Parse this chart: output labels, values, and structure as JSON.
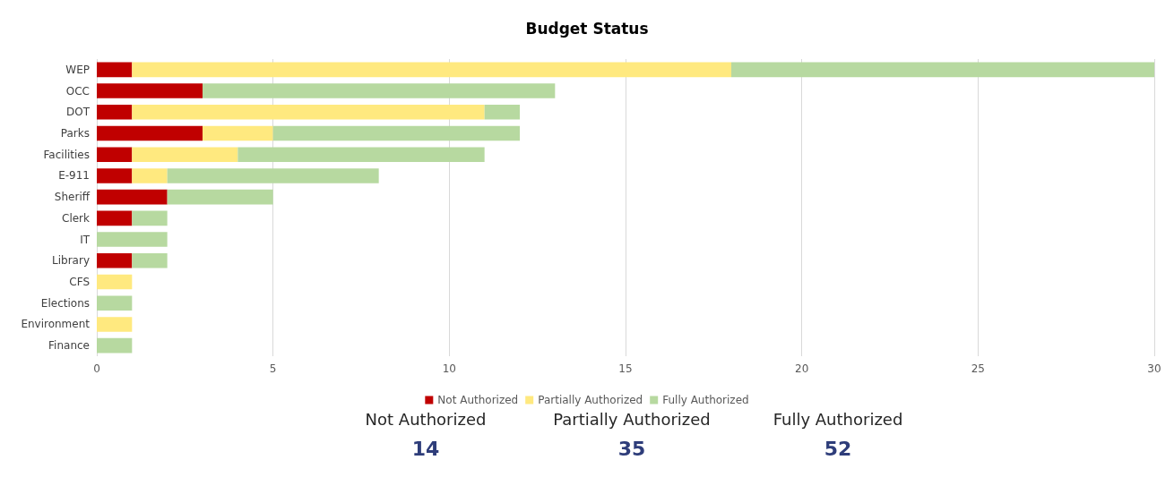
{
  "chart_data": [
    {
      "type": "bar",
      "title": "Budget Status",
      "orientation": "horizontal",
      "stacked": true,
      "categories": [
        "WEP",
        "OCC",
        "DOT",
        "Parks",
        "Facilities",
        "E-911",
        "Sheriff",
        "Clerk",
        "IT",
        "Library",
        "CFS",
        "Elections",
        "Environment",
        "Finance"
      ],
      "series": [
        {
          "name": "Not Authorized",
          "color": "#c00000",
          "values": [
            1,
            3,
            1,
            3,
            1,
            1,
            2,
            1,
            0,
            1,
            0,
            0,
            0,
            0
          ]
        },
        {
          "name": "Partially Authorized",
          "color": "#ffe97f",
          "values": [
            17,
            0,
            10,
            2,
            3,
            1,
            0,
            0,
            0,
            0,
            1,
            0,
            1,
            0
          ]
        },
        {
          "name": "Fully Authorized",
          "color": "#b7d9a0",
          "values": [
            12,
            10,
            1,
            7,
            7,
            6,
            3,
            1,
            2,
            1,
            0,
            1,
            0,
            1
          ]
        }
      ],
      "xlim": [
        0,
        30
      ],
      "xticks": [
        0,
        5,
        10,
        15,
        20,
        25,
        30
      ],
      "grid": "x",
      "legend": "bottom"
    },
    {
      "type": "other",
      "categories": [
        "Not Authorized",
        "Partially Authorized",
        "Fully Authorized"
      ],
      "values": [
        14,
        35,
        52
      ],
      "color": "#2e3d7a",
      "data_labels": true
    }
  ]
}
